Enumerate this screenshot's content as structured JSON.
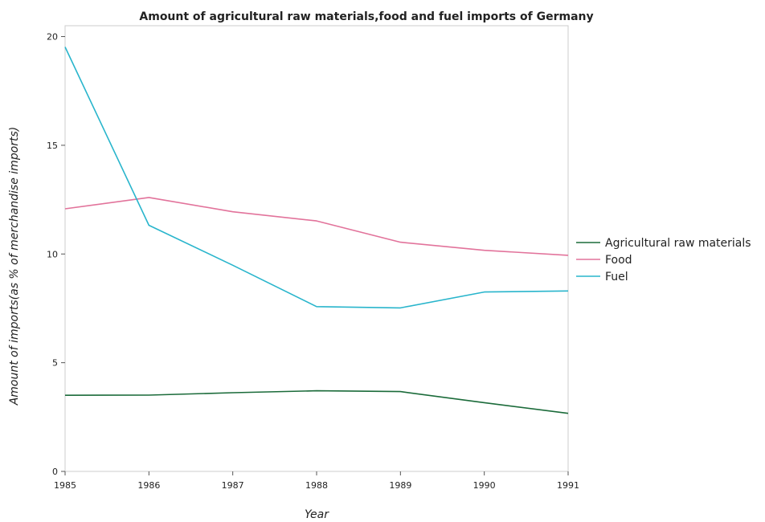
{
  "chart_data": {
    "type": "line",
    "title": "Amount of agricultural raw materials,food and fuel imports of Germany",
    "xlabel": "Year",
    "ylabel": "Amount of imports(as % of merchandise imports)",
    "x": [
      "1985",
      "1986",
      "1987",
      "1988",
      "1989",
      "1990",
      "1991"
    ],
    "ylim": [
      0,
      20.5
    ],
    "yticks": [
      0,
      5,
      10,
      15,
      20
    ],
    "grid": false,
    "legend_position": "right",
    "series": [
      {
        "name": "Agricultural raw materials",
        "color": "#1b6b3a",
        "values": [
          3.5,
          3.51,
          3.62,
          3.71,
          3.67,
          3.16,
          2.67
        ]
      },
      {
        "name": "Food",
        "color": "#e2739b",
        "values": [
          12.08,
          12.6,
          11.94,
          11.52,
          10.54,
          10.17,
          9.94
        ]
      },
      {
        "name": "Fuel",
        "color": "#29b5cc",
        "values": [
          19.52,
          11.32,
          9.48,
          7.58,
          7.52,
          8.25,
          8.3
        ]
      }
    ]
  }
}
